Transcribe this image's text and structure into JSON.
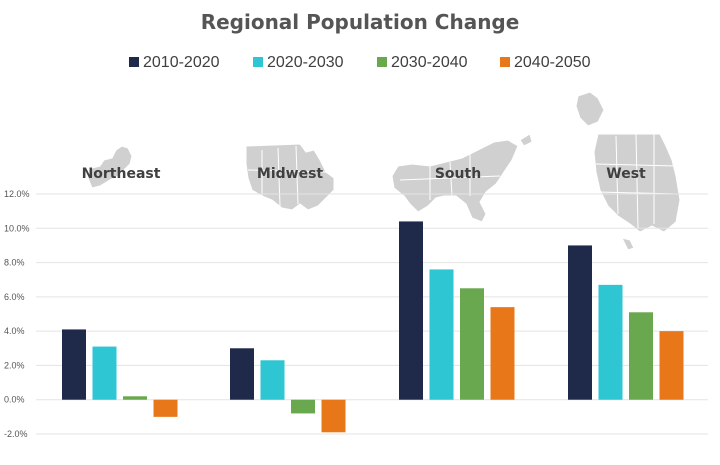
{
  "chart_data": {
    "type": "bar",
    "title": "Regional Population Change",
    "categories": [
      "Northeast",
      "Midwest",
      "South",
      "West"
    ],
    "series": [
      {
        "name": "2010-2020",
        "color": "#1f2a4a",
        "values": [
          4.1,
          3.0,
          10.4,
          9.0
        ]
      },
      {
        "name": "2020-2030",
        "color": "#2ec6d3",
        "values": [
          3.1,
          2.3,
          7.6,
          6.7
        ]
      },
      {
        "name": "2030-2040",
        "color": "#6aa84f",
        "values": [
          0.2,
          -0.8,
          6.5,
          5.1
        ]
      },
      {
        "name": "2040-2050",
        "color": "#e8771a",
        "values": [
          -1.0,
          -1.9,
          5.4,
          4.0
        ]
      }
    ],
    "ylim": [
      -2,
      12
    ],
    "yticks": [
      "-2.0%",
      "0.0%",
      "2.0%",
      "4.0%",
      "6.0%",
      "8.0%",
      "10.0%",
      "12.0%"
    ],
    "grid": true,
    "legend_position": "top",
    "region_maps": [
      "northeast-map",
      "midwest-map",
      "south-map",
      "west-map"
    ]
  }
}
